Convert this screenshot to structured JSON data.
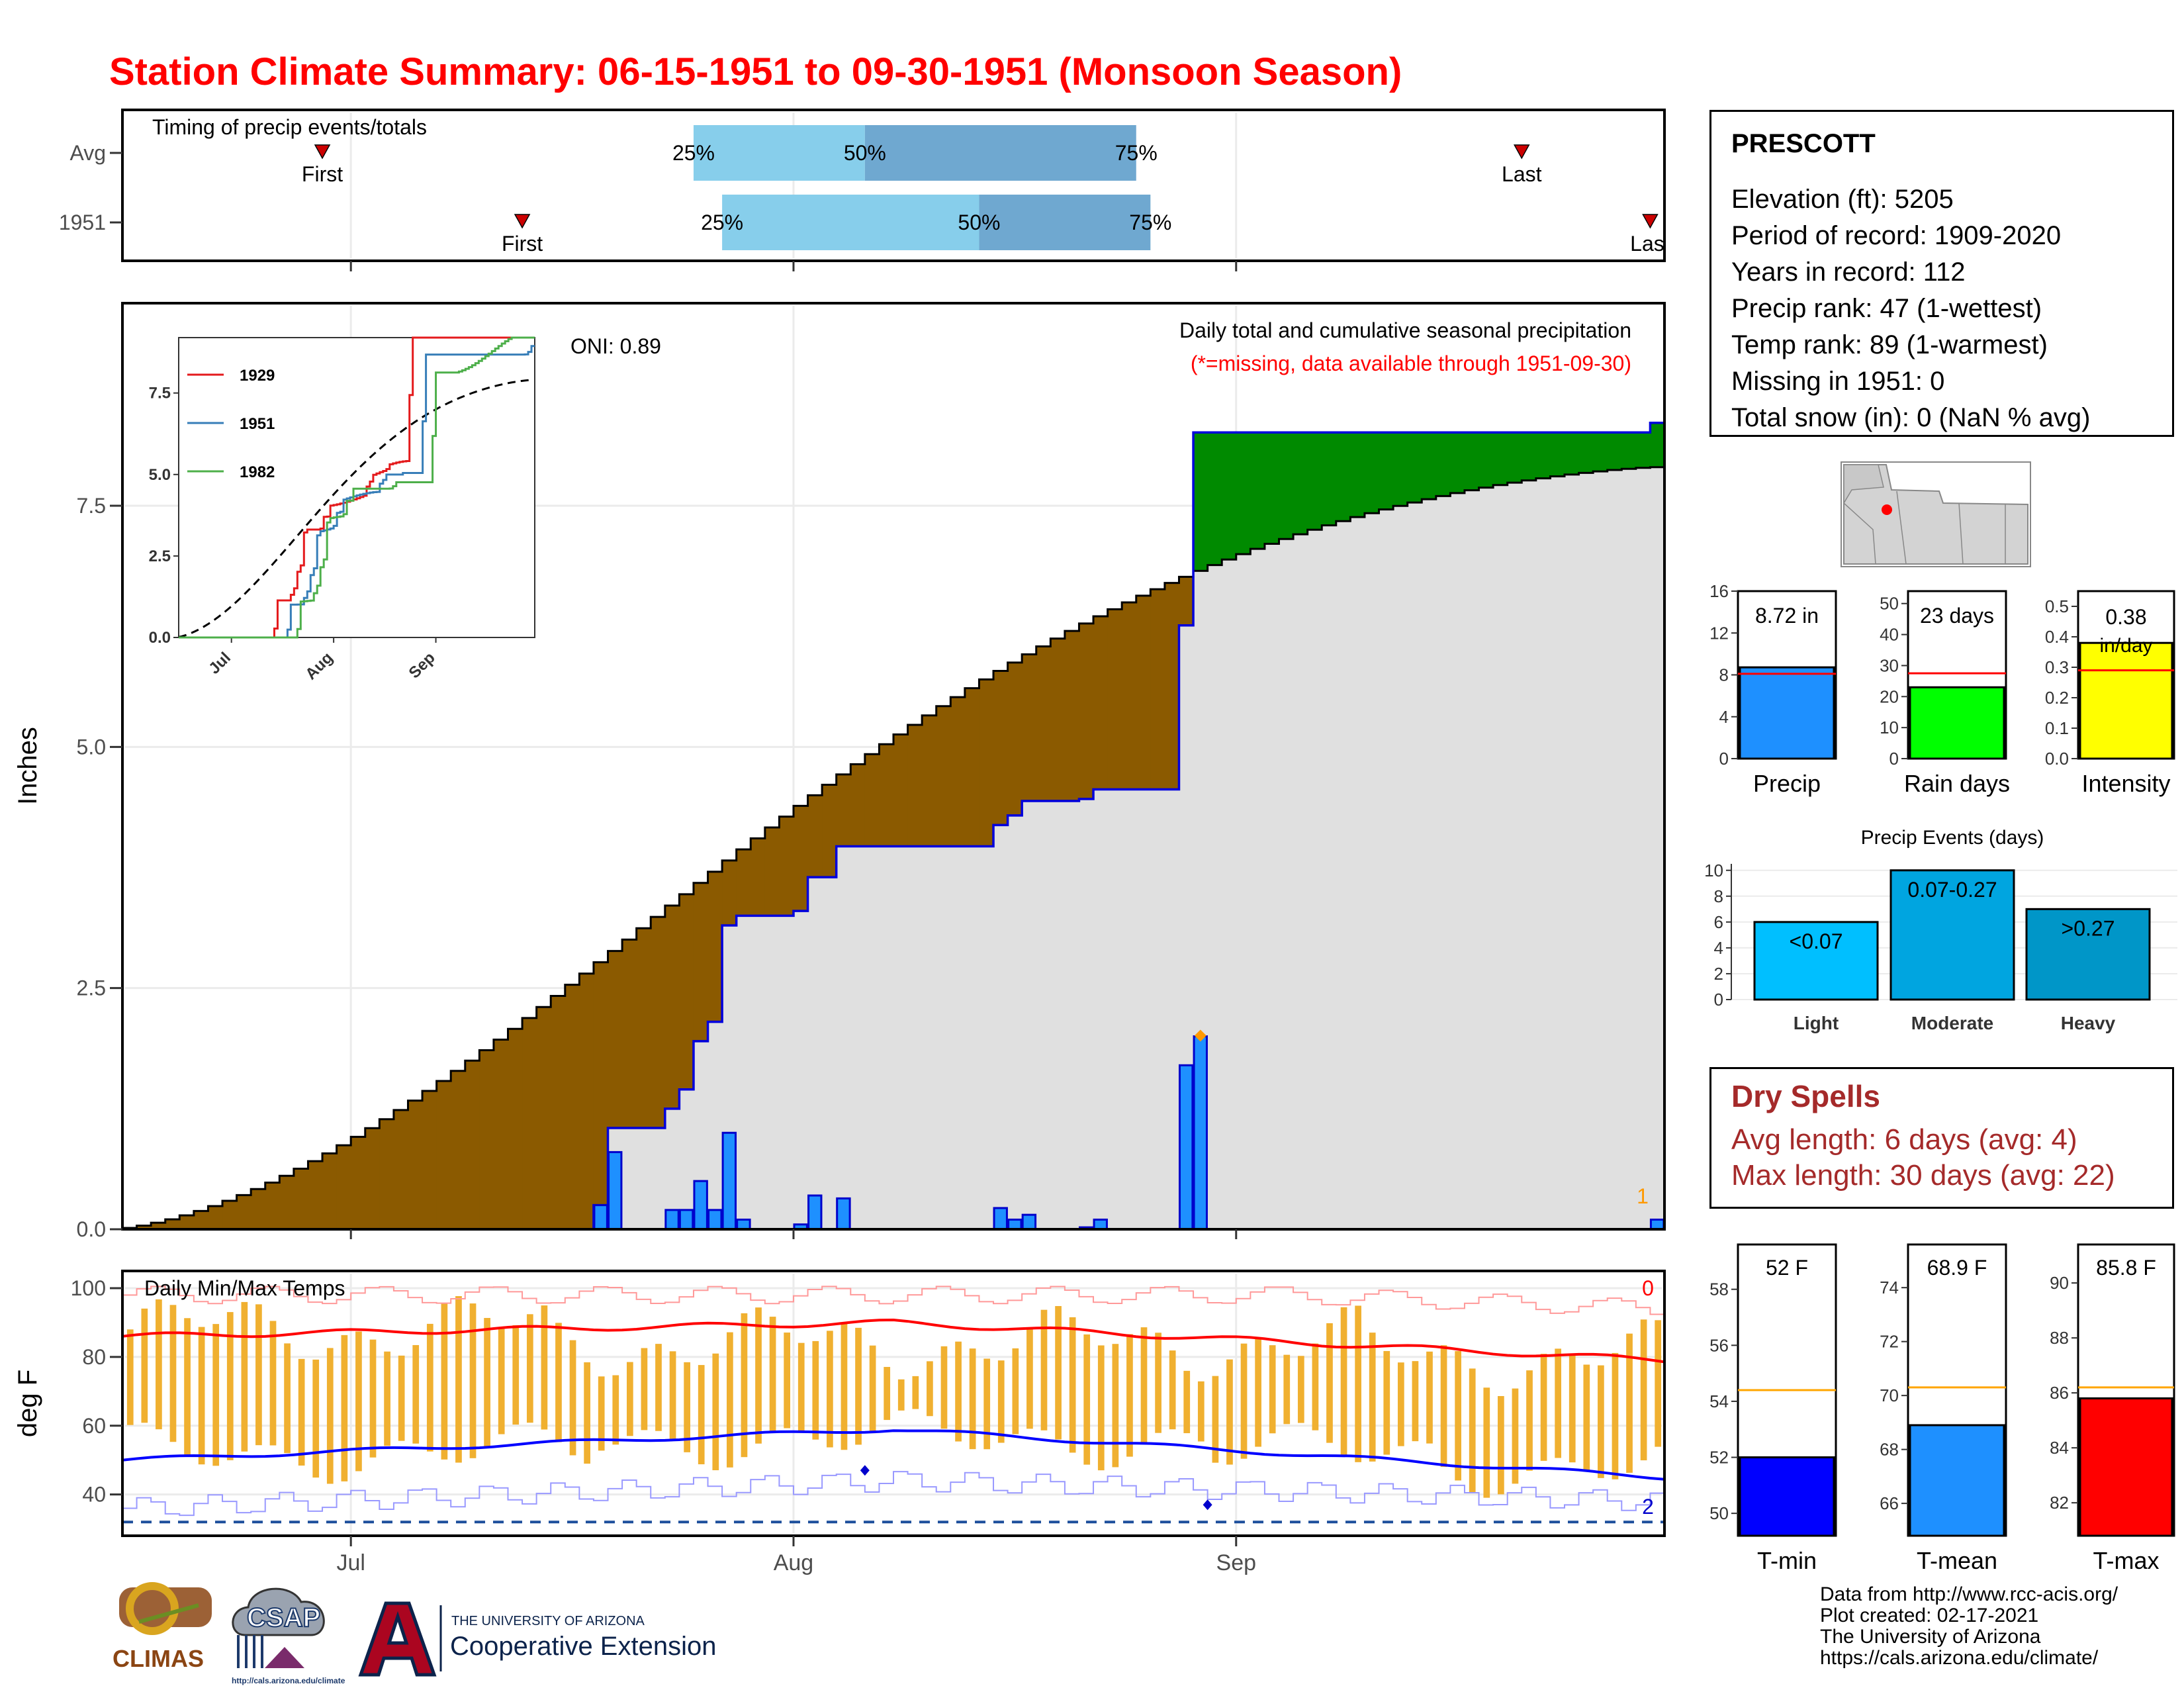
{
  "title": "Station Climate Summary: 06-15-1951 to 09-30-1951 (Monsoon Season)",
  "station": {
    "name": "PRESCOTT",
    "lines": [
      "Elevation (ft): 5205",
      "Period of record: 1909-2020",
      "Years in record: 112",
      "Precip rank: 47 (1-wettest)",
      "Temp rank: 89 (1-warmest)",
      "Missing in 1951: 0",
      "Total snow (in): 0 (NaN % avg)"
    ]
  },
  "dry_spells": {
    "title": "Dry Spells",
    "avg_line": "Avg length: 6 days (avg: 4)",
    "max_line": "Max length: 30 days (avg: 22)"
  },
  "credits": [
    "Data from http://www.rcc-acis.org/",
    "Plot created: 02-17-2021",
    "The University of Arizona",
    "https://cals.arizona.edu/climate/"
  ],
  "logos": {
    "climas": "CLIMAS",
    "csap": "CSAP",
    "csap_url": "http://cals.arizona.edu/climate",
    "ua_line1": "THE UNIVERSITY OF ARIZONA",
    "ua_line2": "Cooperative Extension"
  },
  "colors": {
    "title": "#ff0000",
    "above_avg": "#008a00",
    "below_avg": "#8b5a00",
    "cumulative_fill": "#e0e0e0",
    "daily_bar": "#1e90ff",
    "quartile_light": "#87ceeb",
    "quartile_dark": "#6fa8d0",
    "temp_bar": "#f0b030",
    "tmax_line": "#ff0000",
    "tmin_line": "#0000ff"
  },
  "chart_data": [
    {
      "type": "timeline",
      "panel": "timing",
      "title": "Timing of precip events/totals",
      "rows": [
        {
          "label": "Avg",
          "first": "06-29",
          "q25": "07-25",
          "q50": "08-06",
          "q75": "08-25",
          "last": "09-21",
          "first_label": "First",
          "last_label": "Last",
          "q25_label": "25%",
          "q50_label": "50%",
          "q75_label": "75%"
        },
        {
          "label": "1951",
          "first": "07-13",
          "q25": "07-27",
          "q50": "08-14",
          "q75": "08-26",
          "last": "09-30",
          "first_label": "First",
          "last_label": "Last",
          "q25_label": "25%",
          "q50_label": "50%",
          "q75_label": "75%"
        }
      ],
      "xticks": [
        "Jul",
        "Aug",
        "Sep"
      ]
    },
    {
      "type": "area",
      "panel": "precipitation",
      "title": "Daily total and cumulative seasonal precipitation",
      "subtitle": "(*=missing, data available through 1951-09-30)",
      "ylabel": "Inches",
      "ylim": [
        0,
        9.6
      ],
      "yticks": [
        "0.0",
        "2.5",
        "5.0",
        "7.5"
      ],
      "xticks": [
        "Jul",
        "Aug",
        "Sep"
      ],
      "oni": "ONI: 0.89",
      "missing_count": "1",
      "season_days": 108,
      "daily_precip": [
        {
          "day": 33,
          "value": 0.25
        },
        {
          "day": 34,
          "value": 0.8
        },
        {
          "day": 38,
          "value": 0.2
        },
        {
          "day": 39,
          "value": 0.2
        },
        {
          "day": 40,
          "value": 0.5
        },
        {
          "day": 41,
          "value": 0.2
        },
        {
          "day": 42,
          "value": 1.0
        },
        {
          "day": 43,
          "value": 0.1
        },
        {
          "day": 47,
          "value": 0.05
        },
        {
          "day": 48,
          "value": 0.35
        },
        {
          "day": 50,
          "value": 0.32
        },
        {
          "day": 61,
          "value": 0.22
        },
        {
          "day": 62,
          "value": 0.1
        },
        {
          "day": 63,
          "value": 0.15
        },
        {
          "day": 67,
          "value": 0.02
        },
        {
          "day": 68,
          "value": 0.1
        },
        {
          "day": 74,
          "value": 1.7
        },
        {
          "day": 75,
          "value": 2.0
        },
        {
          "day": 107,
          "value": 0.1
        }
      ],
      "cumulative_avg_end": 7.9,
      "cumulative_1951_end": 8.72,
      "inset": {
        "type": "line",
        "ylim": [
          0,
          9.2
        ],
        "yticks": [
          "0.0",
          "2.5",
          "5.0",
          "7.5"
        ],
        "xticks": [
          "Jul",
          "Aug",
          "Sep"
        ],
        "series": [
          {
            "name": "1929",
            "color": "#e41a1c",
            "end": 9.2
          },
          {
            "name": "1951",
            "color": "#377eb8",
            "end": 8.72
          },
          {
            "name": "1982",
            "color": "#4daf4a",
            "end": 8.9
          }
        ]
      }
    },
    {
      "type": "bar",
      "panel": "totals",
      "panels": [
        {
          "label": "Precip",
          "value_label": "8.72 in",
          "value": 8.72,
          "avg": 8.1,
          "ylim": [
            0,
            16
          ],
          "yticks": [
            "0",
            "4",
            "8",
            "12",
            "16"
          ],
          "color": "#1e90ff"
        },
        {
          "label": "Rain days",
          "value_label": "23 days",
          "value": 23,
          "avg": 27.5,
          "ylim": [
            0,
            54
          ],
          "yticks": [
            "0",
            "10",
            "20",
            "30",
            "40",
            "50"
          ],
          "color": "#00ff00"
        },
        {
          "label": "Intensity",
          "value_label": "0.38",
          "unit_label": "in/day",
          "value": 0.38,
          "avg": 0.29,
          "ylim": [
            0,
            0.55
          ],
          "yticks": [
            "0.0",
            "0.1",
            "0.2",
            "0.3",
            "0.4",
            "0.5"
          ],
          "color": "#ffff00"
        }
      ]
    },
    {
      "type": "bar",
      "panel": "events",
      "title": "Precip Events (days)",
      "categories": [
        "Light",
        "Moderate",
        "Heavy"
      ],
      "value_labels": [
        "<0.07",
        "0.07-0.27",
        ">0.27"
      ],
      "values": [
        6,
        10,
        7
      ],
      "ylim": [
        0,
        10.5
      ],
      "yticks": [
        "0",
        "2",
        "4",
        "6",
        "8",
        "10"
      ],
      "colors": [
        "#00bfff",
        "#00a5e0",
        "#0096c8"
      ]
    },
    {
      "type": "line",
      "panel": "temperature",
      "title": "Daily Min/Max Temps",
      "ylabel": "deg F",
      "ylim": [
        28,
        105
      ],
      "yticks": [
        "40",
        "60",
        "80",
        "100"
      ],
      "xticks": [
        "Jul",
        "Aug",
        "Sep"
      ],
      "freeze_line": 32,
      "count_hot": "0",
      "count_cold": "2",
      "avg_tmax_start": 86,
      "avg_tmax_mid": 90,
      "avg_tmax_end": 79,
      "avg_tmin_start": 50,
      "avg_tmin_mid": 59,
      "avg_tmin_end": 45
    },
    {
      "type": "bar",
      "panel": "temp_summary",
      "panels": [
        {
          "label": "T-min",
          "value_label": "52 F",
          "value": 52,
          "avg": 54.4,
          "ylim": [
            49.2,
            59.6
          ],
          "yticks": [
            "50",
            "52",
            "54",
            "56",
            "58"
          ],
          "color": "#0000ff"
        },
        {
          "label": "T-mean",
          "value_label": "68.9 F",
          "value": 68.9,
          "avg": 70.3,
          "ylim": [
            64.8,
            75.6
          ],
          "yticks": [
            "66",
            "68",
            "70",
            "72",
            "74"
          ],
          "color": "#1e90ff"
        },
        {
          "label": "T-max",
          "value_label": "85.8 F",
          "value": 85.8,
          "avg": 86.2,
          "ylim": [
            80.8,
            91.4
          ],
          "yticks": [
            "82",
            "84",
            "86",
            "88",
            "90"
          ],
          "color": "#ff0000"
        }
      ]
    }
  ]
}
